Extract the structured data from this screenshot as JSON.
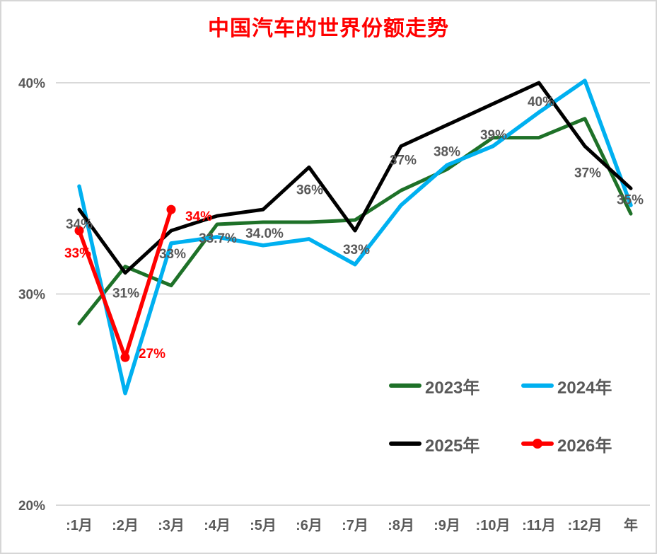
{
  "title": {
    "text": "中国汽车的世界份额走势",
    "color": "#FF0000"
  },
  "chart_data": {
    "type": "line",
    "title": "中国汽车的世界份额走势",
    "categories": [
      ":1月",
      ":2月",
      ":3月",
      ":4月",
      ":5月",
      ":6月",
      ":7月",
      ":8月",
      ":9月",
      ":10月",
      ":11月",
      ":12月",
      "年"
    ],
    "xlabel": "",
    "ylabel": "",
    "y_axis": {
      "unit": "%",
      "min": 20,
      "max": 40,
      "tick_labels": [
        "40%",
        "30%",
        "20%"
      ],
      "tick_values": [
        40,
        30,
        20
      ]
    },
    "grid": true,
    "legend_position": "inside-bottom-right",
    "series": [
      {
        "name": "2023年",
        "color": "#1E7128",
        "marker": false,
        "values": [
          28.6,
          31.3,
          30.4,
          33.3,
          33.4,
          33.4,
          33.5,
          34.9,
          35.9,
          37.4,
          37.4,
          38.3,
          33.8
        ],
        "labels": [
          "",
          "",
          "",
          "",
          "",
          "",
          "",
          "",
          "",
          "",
          "",
          "",
          ""
        ],
        "label_color": "#595959"
      },
      {
        "name": "2024年",
        "color": "#00B0F0",
        "marker": false,
        "values": [
          35.1,
          25.3,
          32.4,
          32.7,
          32.3,
          32.6,
          31.4,
          34.2,
          36.1,
          37.0,
          38.6,
          40.1,
          34.2
        ],
        "labels": [
          "",
          "",
          "",
          "",
          "",
          "",
          "",
          "",
          "",
          "",
          "",
          "",
          ""
        ],
        "label_color": "#595959"
      },
      {
        "name": "2025年",
        "color": "#000000",
        "marker": false,
        "values": [
          34,
          31,
          33,
          33.7,
          34.0,
          36,
          33,
          37,
          38,
          39,
          40,
          37,
          35
        ],
        "labels": [
          "34%",
          "31%",
          "33%",
          "33.7%",
          "34.0%",
          "36%",
          "33%",
          "37%",
          "38%",
          "39%",
          "40%",
          "37%",
          "35%"
        ],
        "label_color": "#595959"
      },
      {
        "name": "2026年",
        "color": "#FF0000",
        "marker": true,
        "values": [
          33,
          27,
          34
        ],
        "labels": [
          "33%",
          "27%",
          "34%"
        ],
        "label_color": "#FF0000"
      }
    ]
  },
  "legend": {
    "items": [
      {
        "label": "2023年",
        "color": "#1E7128",
        "dot": false
      },
      {
        "label": "2024年",
        "color": "#00B0F0",
        "dot": false
      },
      {
        "label": "2025年",
        "color": "#000000",
        "dot": false
      },
      {
        "label": "2026年",
        "color": "#FF0000",
        "dot": true
      }
    ]
  }
}
